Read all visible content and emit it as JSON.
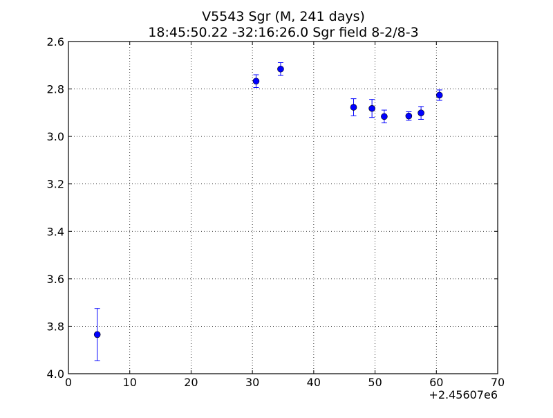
{
  "chart_data": {
    "type": "scatter",
    "title": "V5543 Sgr  (M, 241 days)",
    "subtitle": "18:45:50.22 -32:16:26.0 Sgr field 8-2/8-3",
    "xlabel": "",
    "ylabel": "",
    "x_offset_label": "+2.45607e6",
    "xlim": [
      0,
      70
    ],
    "ylim": [
      4.0,
      2.6
    ],
    "y_inverted": true,
    "grid": true,
    "x_ticks": [
      0,
      10,
      20,
      30,
      40,
      50,
      60,
      70
    ],
    "x_tick_labels": [
      "0",
      "10",
      "20",
      "30",
      "40",
      "50",
      "60",
      "70"
    ],
    "y_ticks": [
      2.6,
      2.8,
      3.0,
      3.2,
      3.4,
      3.6,
      3.8,
      4.0
    ],
    "y_tick_labels": [
      "2.6",
      "2.8",
      "3.0",
      "3.2",
      "3.4",
      "3.6",
      "3.8",
      "4.0"
    ],
    "series": [
      {
        "color": "#0000ff",
        "points": [
          {
            "x": 4.7,
            "y": 3.835,
            "err": 0.11
          },
          {
            "x": 30.6,
            "y": 2.767,
            "err": 0.027
          },
          {
            "x": 34.6,
            "y": 2.716,
            "err": 0.027
          },
          {
            "x": 46.5,
            "y": 2.877,
            "err": 0.036
          },
          {
            "x": 49.5,
            "y": 2.882,
            "err": 0.038
          },
          {
            "x": 51.5,
            "y": 2.916,
            "err": 0.027
          },
          {
            "x": 55.5,
            "y": 2.914,
            "err": 0.018
          },
          {
            "x": 57.5,
            "y": 2.901,
            "err": 0.027
          },
          {
            "x": 60.5,
            "y": 2.826,
            "err": 0.022
          }
        ]
      }
    ]
  }
}
